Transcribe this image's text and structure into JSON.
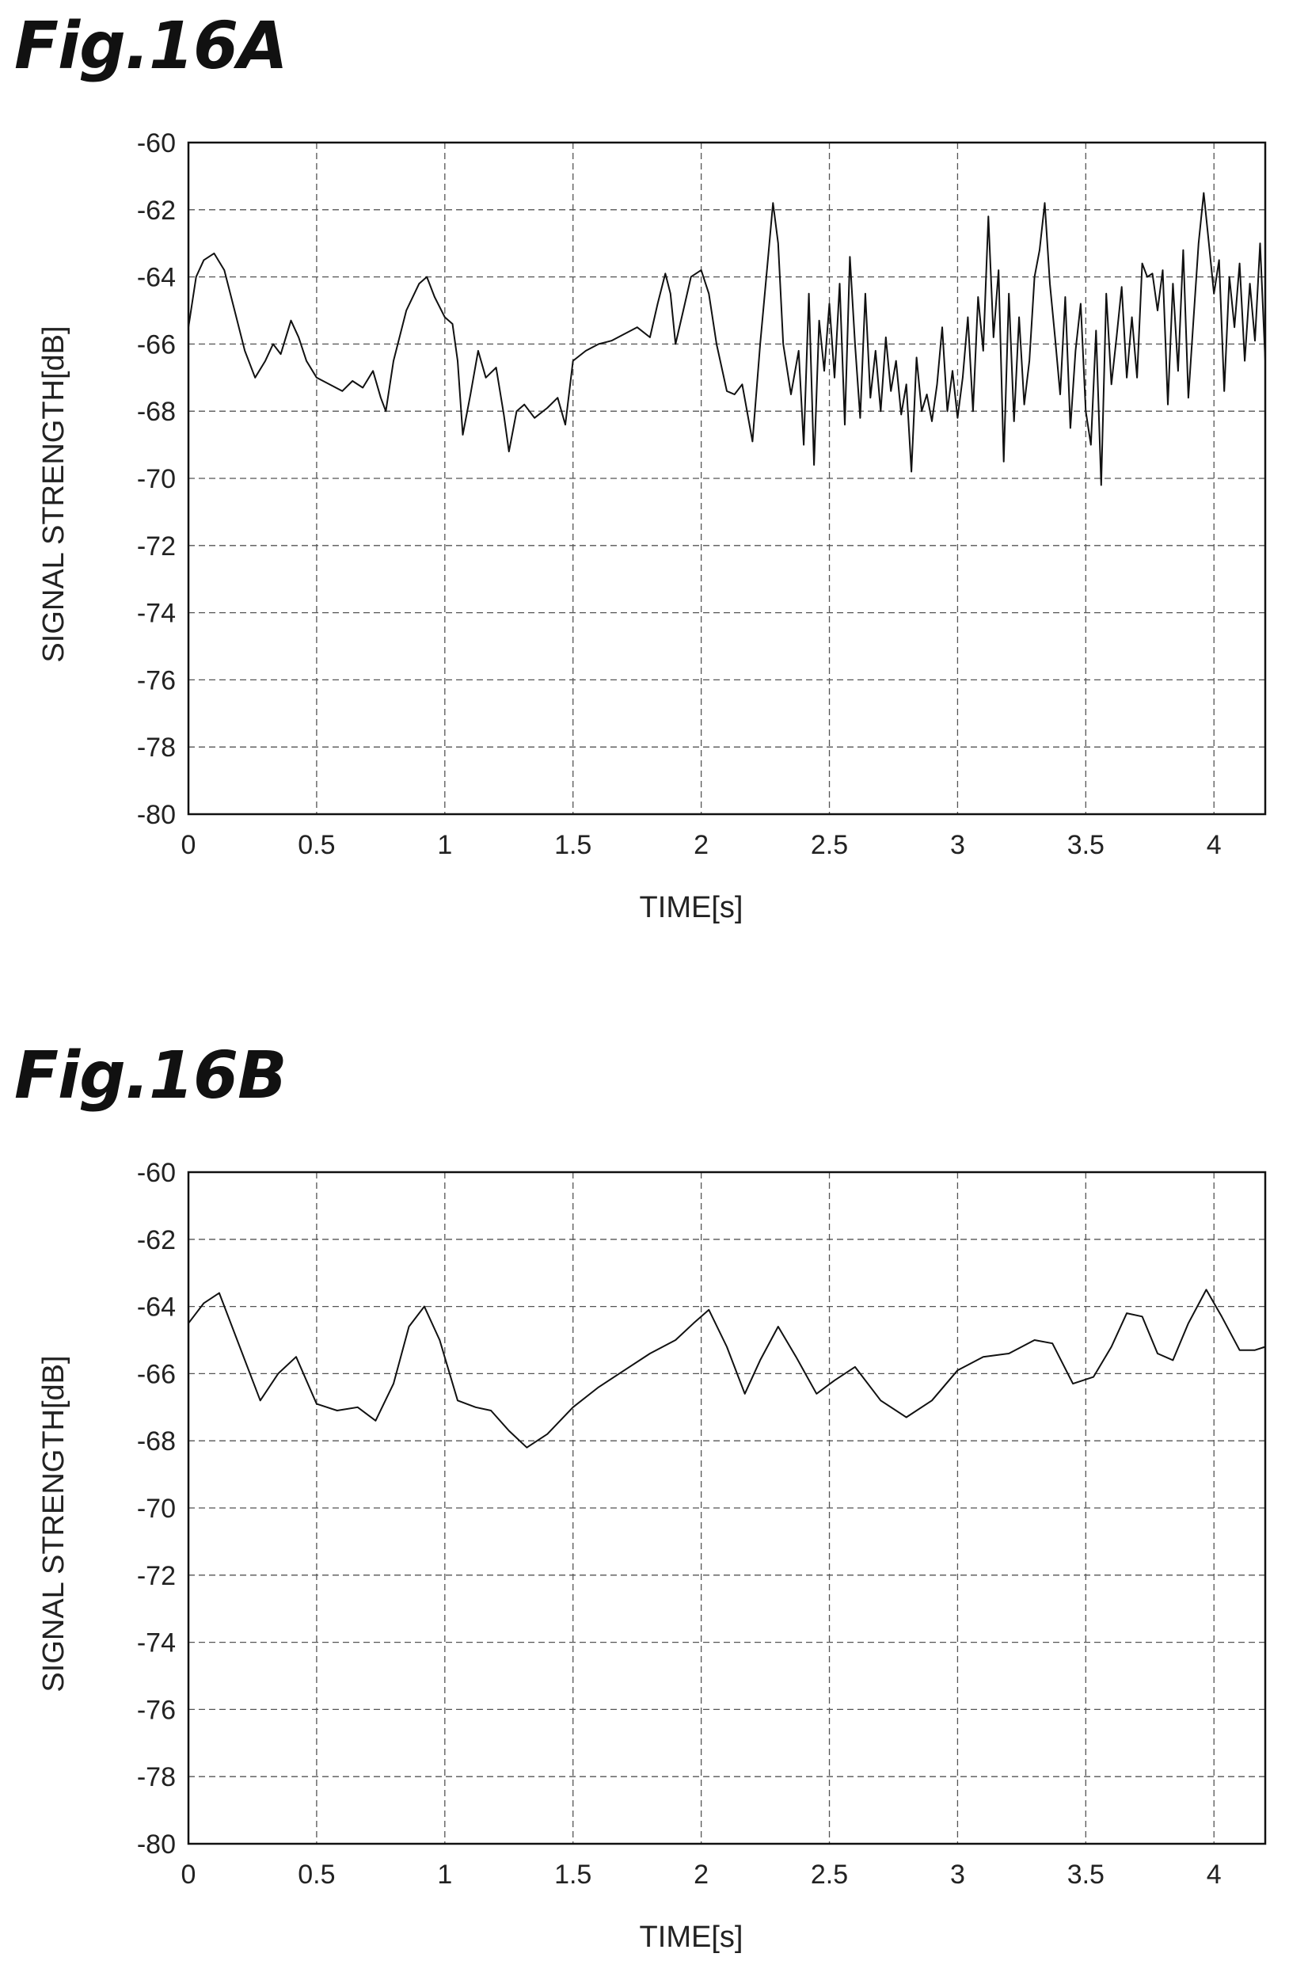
{
  "chart_data": [
    {
      "type": "line",
      "title": "Fig.16A",
      "xlabel": "TIME[s]",
      "ylabel": "SIGNAL STRENGTH[dB]",
      "xlim": [
        0,
        4.2
      ],
      "ylim": [
        -80,
        -60
      ],
      "xticks": [
        0,
        0.5,
        1,
        1.5,
        2,
        2.5,
        3,
        3.5,
        4
      ],
      "xtick_labels": [
        "0",
        "0.5",
        "1",
        "1.5",
        "2",
        "2.5",
        "3",
        "3.5",
        "4"
      ],
      "yticks": [
        -60,
        -62,
        -64,
        -66,
        -68,
        -70,
        -72,
        -74,
        -76,
        -78,
        -80
      ],
      "ytick_labels": [
        "-60",
        "-62",
        "-64",
        "-66",
        "-68",
        "-70",
        "-72",
        "-74",
        "-76",
        "-78",
        "-80"
      ],
      "grid": true,
      "series": [
        {
          "x": [
            0,
            0.03,
            0.06,
            0.1,
            0.14,
            0.18,
            0.22,
            0.26,
            0.3,
            0.33,
            0.36,
            0.4,
            0.43,
            0.46,
            0.5,
            0.55,
            0.6,
            0.64,
            0.68,
            0.72,
            0.75,
            0.77,
            0.8,
            0.85,
            0.9,
            0.93,
            0.96,
            1.0,
            1.03,
            1.05,
            1.07,
            1.1,
            1.13,
            1.16,
            1.2,
            1.23,
            1.25,
            1.28,
            1.31,
            1.35,
            1.4,
            1.44,
            1.47,
            1.5,
            1.55,
            1.6,
            1.65,
            1.7,
            1.75,
            1.8,
            1.83,
            1.86,
            1.88,
            1.9,
            1.93,
            1.96,
            2.0,
            2.03,
            2.06,
            2.1,
            2.13,
            2.16,
            2.2,
            2.23,
            2.26,
            2.28,
            2.3,
            2.32,
            2.35,
            2.38,
            2.4,
            2.42,
            2.44,
            2.46,
            2.48,
            2.5,
            2.52,
            2.54,
            2.56,
            2.58,
            2.6,
            2.62,
            2.64,
            2.66,
            2.68,
            2.7,
            2.72,
            2.74,
            2.76,
            2.78,
            2.8,
            2.82,
            2.84,
            2.86,
            2.88,
            2.9,
            2.92,
            2.94,
            2.96,
            2.98,
            3.0,
            3.02,
            3.04,
            3.06,
            3.08,
            3.1,
            3.12,
            3.14,
            3.16,
            3.18,
            3.2,
            3.22,
            3.24,
            3.26,
            3.28,
            3.3,
            3.32,
            3.34,
            3.36,
            3.38,
            3.4,
            3.42,
            3.44,
            3.46,
            3.48,
            3.5,
            3.52,
            3.54,
            3.56,
            3.58,
            3.6,
            3.62,
            3.64,
            3.66,
            3.68,
            3.7,
            3.72,
            3.74,
            3.76,
            3.78,
            3.8,
            3.82,
            3.84,
            3.86,
            3.88,
            3.9,
            3.92,
            3.94,
            3.96,
            3.98,
            4.0,
            4.02,
            4.04,
            4.06,
            4.08,
            4.1,
            4.12,
            4.14,
            4.16,
            4.18,
            4.2
          ],
          "y": [
            -65.5,
            -64.0,
            -63.5,
            -63.3,
            -63.8,
            -65.0,
            -66.2,
            -67.0,
            -66.5,
            -66.0,
            -66.3,
            -65.3,
            -65.8,
            -66.5,
            -67.0,
            -67.2,
            -67.4,
            -67.1,
            -67.3,
            -66.8,
            -67.6,
            -68.0,
            -66.5,
            -65.0,
            -64.2,
            -64.0,
            -64.6,
            -65.2,
            -65.4,
            -66.5,
            -68.7,
            -67.5,
            -66.2,
            -67.0,
            -66.7,
            -68.1,
            -69.2,
            -68.0,
            -67.8,
            -68.2,
            -67.9,
            -67.6,
            -68.4,
            -66.5,
            -66.2,
            -66.0,
            -65.9,
            -65.7,
            -65.5,
            -65.8,
            -64.8,
            -63.9,
            -64.5,
            -66.0,
            -65.0,
            -64.0,
            -63.8,
            -64.5,
            -66.0,
            -67.4,
            -67.5,
            -67.2,
            -68.9,
            -66.0,
            -63.5,
            -61.8,
            -63.0,
            -66.0,
            -67.5,
            -66.2,
            -69.0,
            -64.5,
            -69.6,
            -65.3,
            -66.8,
            -64.8,
            -67.0,
            -64.2,
            -68.4,
            -63.4,
            -66.0,
            -68.2,
            -64.5,
            -67.6,
            -66.2,
            -68.0,
            -65.8,
            -67.4,
            -66.5,
            -68.1,
            -67.2,
            -69.8,
            -66.4,
            -68.0,
            -67.5,
            -68.3,
            -67.2,
            -65.5,
            -68.0,
            -66.8,
            -68.2,
            -67.0,
            -65.2,
            -68.0,
            -64.6,
            -66.2,
            -62.2,
            -65.8,
            -63.8,
            -69.5,
            -64.5,
            -68.3,
            -65.2,
            -67.8,
            -66.5,
            -64.0,
            -63.2,
            -61.8,
            -64.2,
            -65.8,
            -67.5,
            -64.6,
            -68.5,
            -66.2,
            -64.8,
            -68.0,
            -69.0,
            -65.6,
            -70.2,
            -64.5,
            -67.2,
            -65.8,
            -64.3,
            -67.0,
            -65.2,
            -67.0,
            -63.6,
            -64.0,
            -63.9,
            -65.0,
            -63.8,
            -67.8,
            -64.2,
            -66.8,
            -63.2,
            -67.6,
            -65.3,
            -63.0,
            -61.5,
            -63.0,
            -64.5,
            -63.5,
            -67.4,
            -64.0,
            -65.5,
            -63.6,
            -66.5,
            -64.2,
            -65.9,
            -63.0,
            -66.5
          ]
        }
      ]
    },
    {
      "type": "line",
      "title": "Fig.16B",
      "xlabel": "TIME[s]",
      "ylabel": "SIGNAL STRENGTH[dB]",
      "xlim": [
        0,
        4.2
      ],
      "ylim": [
        -80,
        -60
      ],
      "xticks": [
        0,
        0.5,
        1,
        1.5,
        2,
        2.5,
        3,
        3.5,
        4
      ],
      "xtick_labels": [
        "0",
        "0.5",
        "1",
        "1.5",
        "2",
        "2.5",
        "3",
        "3.5",
        "4"
      ],
      "yticks": [
        -60,
        -62,
        -64,
        -66,
        -68,
        -70,
        -72,
        -74,
        -76,
        -78,
        -80
      ],
      "ytick_labels": [
        "-60",
        "-62",
        "-64",
        "-66",
        "-68",
        "-70",
        "-72",
        "-74",
        "-76",
        "-78",
        "-80"
      ],
      "grid": true,
      "series": [
        {
          "x": [
            0,
            0.06,
            0.12,
            0.2,
            0.28,
            0.35,
            0.42,
            0.5,
            0.58,
            0.66,
            0.73,
            0.8,
            0.86,
            0.92,
            0.98,
            1.05,
            1.12,
            1.18,
            1.25,
            1.32,
            1.4,
            1.5,
            1.6,
            1.7,
            1.8,
            1.9,
            1.97,
            2.03,
            2.1,
            2.17,
            2.23,
            2.3,
            2.37,
            2.45,
            2.52,
            2.6,
            2.7,
            2.8,
            2.9,
            3.0,
            3.1,
            3.2,
            3.3,
            3.37,
            3.45,
            3.53,
            3.6,
            3.66,
            3.72,
            3.78,
            3.84,
            3.9,
            3.97,
            4.03,
            4.1,
            4.16,
            4.2
          ],
          "y": [
            -64.5,
            -63.9,
            -63.6,
            -65.2,
            -66.8,
            -66.0,
            -65.5,
            -66.9,
            -67.1,
            -67.0,
            -67.4,
            -66.3,
            -64.6,
            -64.0,
            -65.0,
            -66.8,
            -67.0,
            -67.1,
            -67.7,
            -68.2,
            -67.8,
            -67.0,
            -66.4,
            -65.9,
            -65.4,
            -65.0,
            -64.5,
            -64.1,
            -65.2,
            -66.6,
            -65.6,
            -64.6,
            -65.5,
            -66.6,
            -66.2,
            -65.8,
            -66.8,
            -67.3,
            -66.8,
            -65.9,
            -65.5,
            -65.4,
            -65.0,
            -65.1,
            -66.3,
            -66.1,
            -65.2,
            -64.2,
            -64.3,
            -65.4,
            -65.6,
            -64.5,
            -63.5,
            -64.3,
            -65.3,
            -65.3,
            -65.2
          ]
        }
      ]
    }
  ]
}
